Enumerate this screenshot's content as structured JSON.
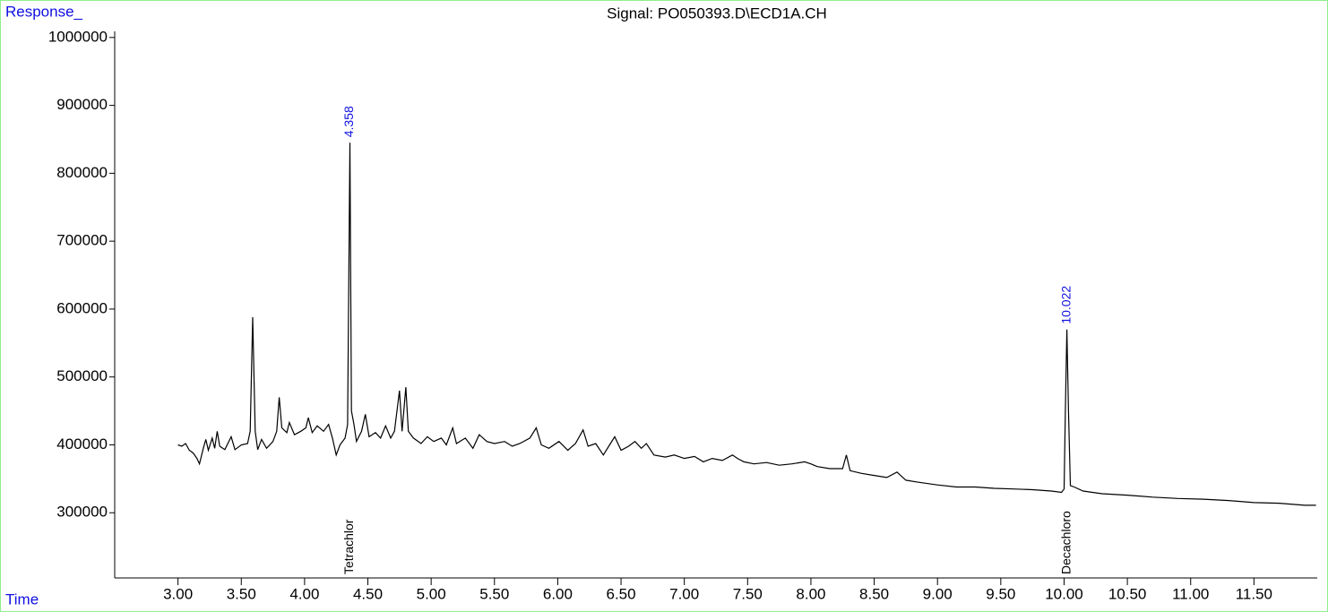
{
  "chart_data": {
    "type": "line",
    "title": "Signal: PO050393.D\\ECD1A.CH",
    "ylabel": "Response_",
    "xlabel": "Time",
    "x": [
      3.0,
      3.03,
      3.06,
      3.09,
      3.12,
      3.15,
      3.17,
      3.2,
      3.22,
      3.24,
      3.27,
      3.29,
      3.31,
      3.33,
      3.37,
      3.42,
      3.45,
      3.5,
      3.55,
      3.57,
      3.59,
      3.61,
      3.63,
      3.66,
      3.7,
      3.75,
      3.78,
      3.8,
      3.82,
      3.86,
      3.88,
      3.92,
      3.97,
      4.01,
      4.03,
      4.06,
      4.1,
      4.15,
      4.19,
      4.22,
      4.25,
      4.28,
      4.32,
      4.34,
      4.358,
      4.37,
      4.39,
      4.41,
      4.45,
      4.48,
      4.51,
      4.56,
      4.6,
      4.64,
      4.68,
      4.71,
      4.75,
      4.77,
      4.8,
      4.82,
      4.86,
      4.92,
      4.97,
      5.02,
      5.08,
      5.12,
      5.17,
      5.2,
      5.27,
      5.33,
      5.38,
      5.44,
      5.5,
      5.58,
      5.64,
      5.7,
      5.78,
      5.83,
      5.87,
      5.93,
      6.01,
      6.08,
      6.14,
      6.2,
      6.24,
      6.3,
      6.36,
      6.41,
      6.45,
      6.5,
      6.56,
      6.61,
      6.66,
      6.7,
      6.76,
      6.85,
      6.92,
      7.0,
      7.08,
      7.15,
      7.22,
      7.3,
      7.38,
      7.42,
      7.47,
      7.55,
      7.65,
      7.75,
      7.85,
      7.95,
      8.0,
      8.05,
      8.15,
      8.25,
      8.28,
      8.31,
      8.4,
      8.5,
      8.6,
      8.68,
      8.75,
      8.85,
      9.0,
      9.15,
      9.3,
      9.45,
      9.6,
      9.75,
      9.9,
      9.98,
      10.0,
      10.01,
      10.022,
      10.035,
      10.05,
      10.08,
      10.15,
      10.3,
      10.5,
      10.7,
      10.9,
      11.1,
      11.3,
      11.5,
      11.7,
      11.9,
      11.99
    ],
    "series": [
      {
        "name": "ECD1A",
        "color": "#000000",
        "values": [
          400000,
          398000,
          402000,
          392000,
          388000,
          380000,
          372000,
          395000,
          408000,
          392000,
          410000,
          395000,
          420000,
          398000,
          393000,
          412000,
          393000,
          400000,
          402000,
          420000,
          588000,
          420000,
          393000,
          408000,
          395000,
          405000,
          420000,
          470000,
          425000,
          418000,
          433000,
          415000,
          420000,
          425000,
          440000,
          418000,
          428000,
          420000,
          430000,
          410000,
          385000,
          400000,
          410000,
          430000,
          845000,
          450000,
          430000,
          405000,
          420000,
          445000,
          412000,
          418000,
          410000,
          428000,
          410000,
          420000,
          480000,
          420000,
          485000,
          420000,
          410000,
          402000,
          412000,
          405000,
          410000,
          400000,
          425000,
          402000,
          410000,
          395000,
          415000,
          405000,
          402000,
          405000,
          398000,
          402000,
          410000,
          425000,
          400000,
          395000,
          405000,
          392000,
          402000,
          422000,
          398000,
          402000,
          385000,
          400000,
          412000,
          392000,
          398000,
          405000,
          395000,
          402000,
          385000,
          382000,
          385000,
          380000,
          383000,
          375000,
          380000,
          377000,
          385000,
          380000,
          375000,
          372000,
          374000,
          370000,
          372000,
          375000,
          372000,
          368000,
          365000,
          365000,
          385000,
          362000,
          358000,
          355000,
          352000,
          360000,
          348000,
          345000,
          341000,
          338000,
          338000,
          336000,
          335000,
          334000,
          332000,
          330000,
          335000,
          450000,
          570000,
          450000,
          340000,
          338000,
          332000,
          328000,
          326000,
          323000,
          321000,
          320000,
          318000,
          315000,
          314000,
          311000,
          311000
        ]
      }
    ],
    "xlim": [
      2.5,
      12.0
    ],
    "ylim": [
      204000,
      1009000
    ],
    "xticks": [
      {
        "value": 3.0,
        "label": "3.00"
      },
      {
        "value": 3.5,
        "label": "3.50"
      },
      {
        "value": 4.0,
        "label": "4.00"
      },
      {
        "value": 4.5,
        "label": "4.50"
      },
      {
        "value": 5.0,
        "label": "5.00"
      },
      {
        "value": 5.5,
        "label": "5.50"
      },
      {
        "value": 6.0,
        "label": "6.00"
      },
      {
        "value": 6.5,
        "label": "6.50"
      },
      {
        "value": 7.0,
        "label": "7.00"
      },
      {
        "value": 7.5,
        "label": "7.50"
      },
      {
        "value": 8.0,
        "label": "8.00"
      },
      {
        "value": 8.5,
        "label": "8.50"
      },
      {
        "value": 9.0,
        "label": "9.00"
      },
      {
        "value": 9.5,
        "label": "9.50"
      },
      {
        "value": 10.0,
        "label": "10.00"
      },
      {
        "value": 10.5,
        "label": "10.50"
      },
      {
        "value": 11.0,
        "label": "11.00"
      },
      {
        "value": 11.5,
        "label": "11.50"
      }
    ],
    "yticks": [
      300000,
      400000,
      500000,
      600000,
      700000,
      800000,
      900000,
      1000000
    ],
    "peak_labels": [
      {
        "text": "4.358",
        "x": 4.358,
        "y": 845000
      },
      {
        "text": "10.022",
        "x": 10.022,
        "y": 570000
      }
    ],
    "compound_labels": [
      {
        "text": "Tetrachlor",
        "x": 4.358
      },
      {
        "text": "Decachloro",
        "x": 10.022
      }
    ]
  }
}
